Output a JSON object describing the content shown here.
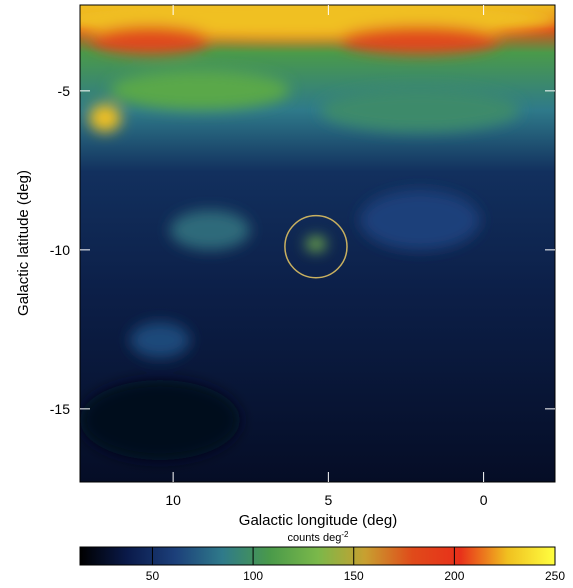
{
  "chart_data": {
    "type": "skymap",
    "xlabel": "Galactic longitude (deg)",
    "ylabel": "Galactic latitude (deg)",
    "xlim": [
      13,
      -2.3
    ],
    "xticks": [
      10,
      5,
      0
    ],
    "ylim": [
      -2.3,
      -17.3
    ],
    "yticks": [
      -5,
      -10,
      -15
    ],
    "annotation": {
      "lon": 5.4,
      "lat": -9.9,
      "radius": 1.0,
      "color": "#c8b060"
    },
    "colorbar": {
      "label": "counts deg",
      "label_sup": "-2",
      "lim": [
        14,
        250
      ],
      "ticks": [
        50,
        100,
        150,
        200,
        250
      ],
      "colormap": [
        "#000000",
        "#0a1a4a",
        "#1c3f7a",
        "#2f7a8a",
        "#4a9a4a",
        "#7ab84a",
        "#c8a030",
        "#e04a1a",
        "#e8301a",
        "#f0c020",
        "#ffff40"
      ]
    }
  }
}
